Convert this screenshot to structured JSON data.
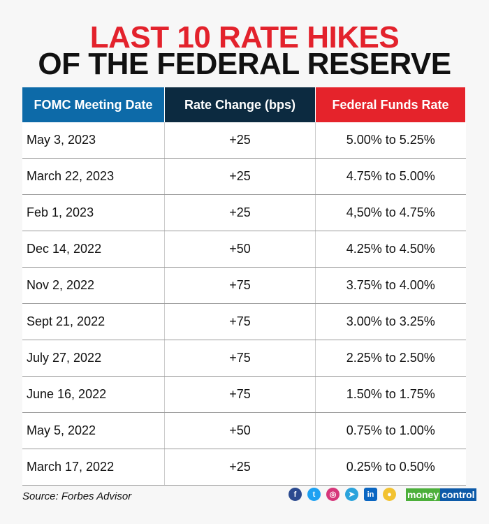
{
  "title": {
    "line1": "LAST 10 RATE HIKES",
    "line2": "OF THE FEDERAL RESERVE"
  },
  "table": {
    "headers": [
      "FOMC Meeting Date",
      "Rate Change (bps)",
      "Federal Funds Rate"
    ],
    "rows": [
      [
        "May 3, 2023",
        "+25",
        "5.00% to 5.25%"
      ],
      [
        "March 22, 2023",
        "+25",
        "4.75% to 5.00%"
      ],
      [
        "Feb 1, 2023",
        "+25",
        "4,50% to 4.75%"
      ],
      [
        "Dec 14, 2022",
        "+50",
        "4.25% to 4.50%"
      ],
      [
        "Nov 2, 2022",
        "+75",
        "3.75% to 4.00%"
      ],
      [
        "Sept 21, 2022",
        "+75",
        "3.00% to 3.25%"
      ],
      [
        "July 27, 2022",
        "+75",
        "2.25% to 2.50%"
      ],
      [
        "June 16, 2022",
        "+75",
        "1.50% to 1.75%"
      ],
      [
        "May 5, 2022",
        "+50",
        "0.75% to 1.00%"
      ],
      [
        "March 17, 2022",
        "+25",
        "0.25% to 0.50%"
      ]
    ]
  },
  "footer": {
    "source": "Source: Forbes Advisor",
    "brand_a": "money",
    "brand_b": "control",
    "icons": [
      {
        "name": "facebook",
        "glyph": "f",
        "color": "#2b4a8f"
      },
      {
        "name": "twitter",
        "glyph": "t",
        "color": "#1da1f2"
      },
      {
        "name": "instagram",
        "glyph": "◎",
        "color": "#d6367a"
      },
      {
        "name": "telegram",
        "glyph": "➤",
        "color": "#2aa3dc"
      },
      {
        "name": "linkedin",
        "glyph": "in",
        "color": "#0a66c2"
      },
      {
        "name": "koo",
        "glyph": "●",
        "color": "#f2c230"
      }
    ]
  }
}
